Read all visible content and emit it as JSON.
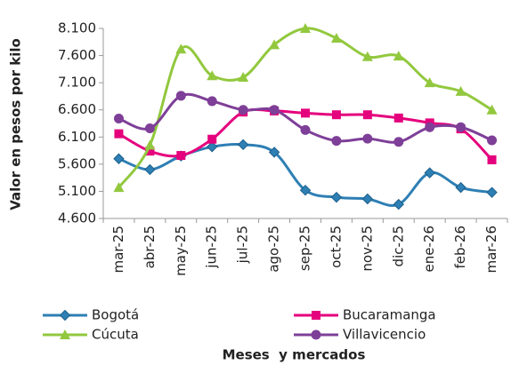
{
  "chart_data": {
    "type": "line",
    "y_label": "Valor en pesos por kilo",
    "x_label": "Meses  y mercados",
    "categories": [
      "mar-25",
      "abr-25",
      "may-25",
      "jun-25",
      "jul-25",
      "ago-25",
      "sep-25",
      "oct-25",
      "nov-25",
      "dic-25",
      "ene-26",
      "feb-26",
      "mar-26"
    ],
    "series": [
      {
        "name": "Bogotá",
        "color": "#2e7fb4",
        "marker": "diamond",
        "values": [
          5700,
          5500,
          5750,
          5920,
          5960,
          5820,
          5120,
          4990,
          4960,
          4860,
          5440,
          5170,
          5080
        ]
      },
      {
        "name": "Bucaramanga",
        "color": "#e5007d",
        "marker": "square",
        "values": [
          6160,
          5840,
          5760,
          6060,
          6560,
          6580,
          6540,
          6510,
          6510,
          6450,
          6360,
          6250,
          5680
        ]
      },
      {
        "name": "Cúcuta",
        "color": "#92c83e",
        "marker": "triangle",
        "values": [
          5170,
          5950,
          7720,
          7230,
          7200,
          7800,
          8100,
          7920,
          7580,
          7590,
          7100,
          6940,
          6600
        ]
      },
      {
        "name": "Villavicencio",
        "color": "#7e3f98",
        "marker": "circle",
        "values": [
          6440,
          6260,
          6860,
          6760,
          6600,
          6600,
          6230,
          6030,
          6070,
          6010,
          6280,
          6280,
          6040
        ]
      }
    ],
    "ylim": [
      4600,
      8100
    ],
    "yticks": [
      {
        "value": 4600,
        "label": "4.600"
      },
      {
        "value": 5100,
        "label": "5.100"
      },
      {
        "value": 5600,
        "label": "5.600"
      },
      {
        "value": 6100,
        "label": "6.100"
      },
      {
        "value": 6600,
        "label": "6.600"
      },
      {
        "value": 7100,
        "label": "7.100"
      },
      {
        "value": 7600,
        "label": "7.600"
      },
      {
        "value": 8100,
        "label": "8.100"
      }
    ],
    "smooth": true,
    "grid": false,
    "legend": "bottom"
  }
}
